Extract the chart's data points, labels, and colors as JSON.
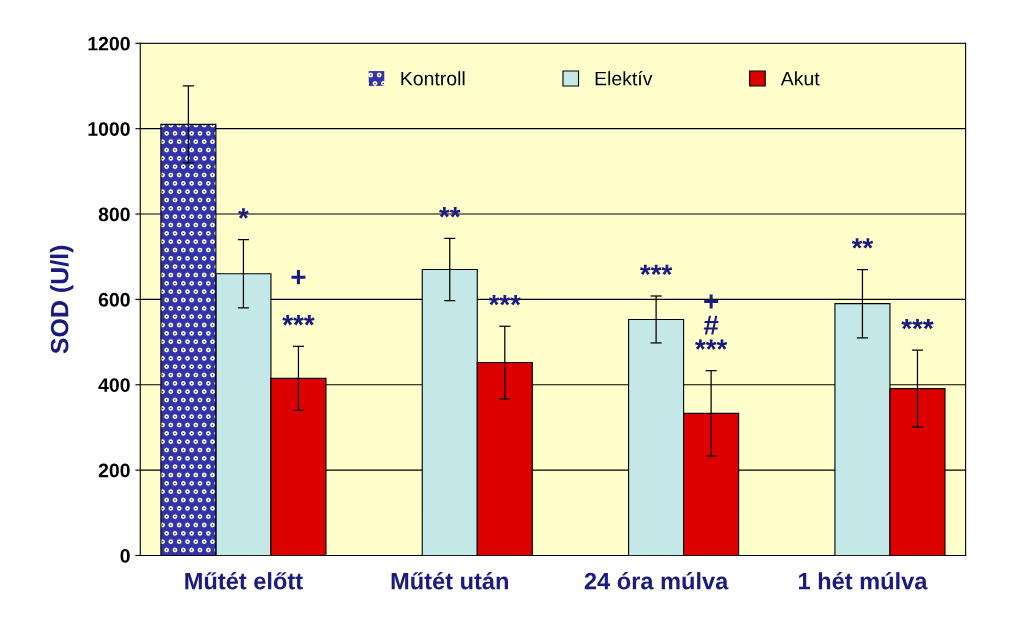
{
  "chart_data": {
    "type": "bar",
    "ylabel": "SOD (U/l)",
    "categories": [
      "Műtét előtt",
      "Műtét után",
      "24 óra múlva",
      "1 hét múlva"
    ],
    "series": [
      {
        "name": "Kontroll",
        "color": "#3333aa",
        "values": [
          1010,
          null,
          null,
          null
        ],
        "errors": [
          90,
          null,
          null,
          null
        ]
      },
      {
        "name": "Elektív",
        "color": "#c4e8e8",
        "values": [
          660,
          670,
          553,
          590
        ],
        "errors": [
          80,
          73,
          55,
          80
        ],
        "value_labels": [
          "*",
          "**",
          "***",
          "**"
        ]
      },
      {
        "name": "Akut",
        "color": "#dd0000",
        "values": [
          415,
          452,
          333,
          391
        ],
        "errors": [
          75,
          85,
          100,
          90
        ],
        "value_labels": [
          "+\n\n***",
          "***",
          "+\n#\n***",
          "***"
        ]
      }
    ],
    "ylim": [
      0,
      1200
    ],
    "yticks": [
      0,
      200,
      400,
      600,
      800,
      1000,
      1200
    ],
    "grid": "y",
    "legend": "top"
  }
}
